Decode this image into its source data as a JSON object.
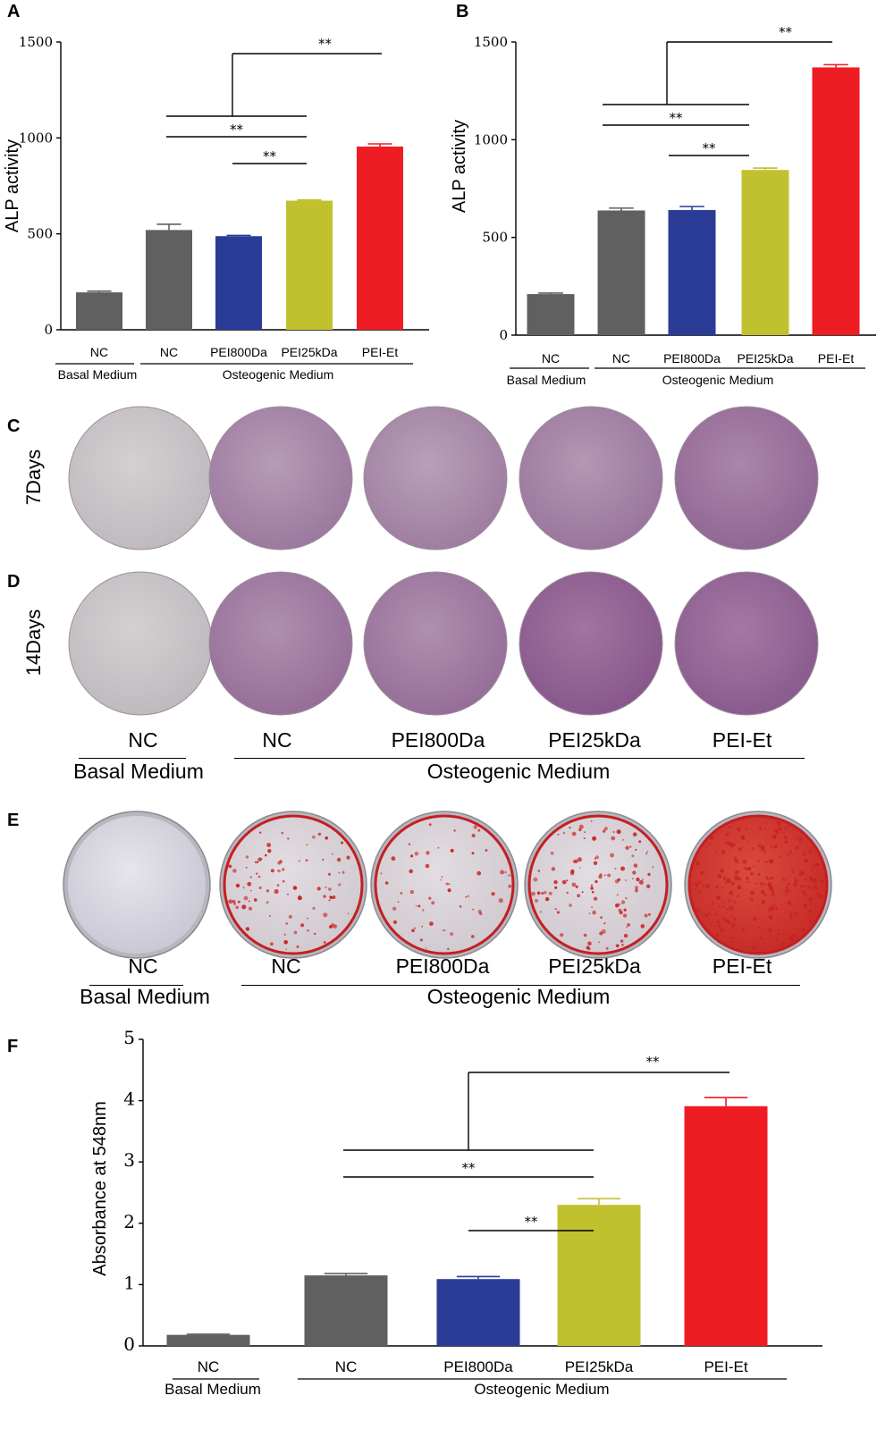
{
  "panels": {
    "A": "A",
    "B": "B",
    "C": "C",
    "D": "D",
    "E": "E",
    "F": "F"
  },
  "colors": {
    "nc_gray": "#606060",
    "pei800_blue": "#2a3c96",
    "pei25_olive": "#c1c12f",
    "peiet_red": "#ee1d24",
    "alp_stain_basal": "#c7c3c6",
    "alp_stain": "#a079a3",
    "ars_stain": "#cc2a2a"
  },
  "chart_data": [
    {
      "id": "A",
      "type": "bar",
      "title": "",
      "ylabel": "ALP activity",
      "ylim": [
        0,
        1500
      ],
      "yticks": [
        "0",
        "500",
        "1000",
        "1500"
      ],
      "yticks_values": [
        0,
        500,
        1000,
        1500
      ],
      "categories": [
        "NC",
        "NC",
        "PEI800Da",
        "PEI25kDa",
        "PEI-Et"
      ],
      "values": [
        195,
        520,
        488,
        673,
        955
      ],
      "errors": [
        6,
        30,
        4,
        4,
        14
      ],
      "bar_colors": [
        "#606060",
        "#606060",
        "#2a3c96",
        "#c1c12f",
        "#ee1d24"
      ],
      "groups": [
        {
          "label": "Basal Medium",
          "from": 0,
          "to": 0
        },
        {
          "label": "Osteogenic Medium",
          "from": 1,
          "to": 4
        }
      ],
      "significance": [
        {
          "from": 2,
          "to": 3,
          "label": "**"
        },
        {
          "from": 1,
          "to": 3,
          "label": "**"
        },
        {
          "from": 1,
          "to": 3,
          "label": ""
        },
        {
          "from": "bracket",
          "to": 4,
          "label": "**"
        }
      ]
    },
    {
      "id": "B",
      "type": "bar",
      "title": "",
      "ylabel": "ALP activity",
      "ylim": [
        0,
        1500
      ],
      "yticks": [
        "0",
        "500",
        "1000",
        "1500"
      ],
      "yticks_values": [
        0,
        500,
        1000,
        1500
      ],
      "categories": [
        "NC",
        "NC",
        "PEI800Da",
        "PEI25kDa",
        "PEI-Et"
      ],
      "values": [
        210,
        638,
        640,
        845,
        1370
      ],
      "errors": [
        5,
        12,
        18,
        10,
        14
      ],
      "bar_colors": [
        "#606060",
        "#606060",
        "#2a3c96",
        "#c1c12f",
        "#ee1d24"
      ],
      "groups": [
        {
          "label": "Basal Medium",
          "from": 0,
          "to": 0
        },
        {
          "label": "Osteogenic Medium",
          "from": 1,
          "to": 4
        }
      ],
      "significance": [
        {
          "from": 2,
          "to": 3,
          "label": "**"
        },
        {
          "from": 1,
          "to": 3,
          "label": "**"
        },
        {
          "from": 1,
          "to": 3,
          "label": ""
        },
        {
          "from": "bracket",
          "to": 4,
          "label": "**"
        }
      ]
    },
    {
      "id": "F",
      "type": "bar",
      "title": "",
      "ylabel": "Absorbance at 548nm",
      "ylim": [
        0,
        5
      ],
      "yticks": [
        "0",
        "1",
        "2",
        "3",
        "4",
        "5"
      ],
      "yticks_values": [
        0,
        1,
        2,
        3,
        4,
        5
      ],
      "categories": [
        "NC",
        "NC",
        "PEI800Da",
        "PEI25kDa",
        "PEI-Et"
      ],
      "values": [
        0.18,
        1.15,
        1.09,
        2.3,
        3.91
      ],
      "errors": [
        0.01,
        0.03,
        0.04,
        0.1,
        0.14
      ],
      "bar_colors": [
        "#606060",
        "#606060",
        "#2a3c96",
        "#c1c12f",
        "#ee1d24"
      ],
      "groups": [
        {
          "label": "Basal Medium",
          "from": 0,
          "to": 0
        },
        {
          "label": "Osteogenic Medium",
          "from": 1,
          "to": 4
        }
      ],
      "significance": [
        {
          "from": 2,
          "to": 3,
          "label": "**"
        },
        {
          "from": 1,
          "to": 3,
          "label": "**"
        },
        {
          "from": 1,
          "to": 3,
          "label": ""
        },
        {
          "from": "bracket",
          "to": 4,
          "label": "**"
        }
      ]
    }
  ],
  "stain_rows": {
    "C": {
      "side_label": "7Days",
      "dishes": [
        "NC",
        "NC",
        "PEI800Da",
        "PEI25kDa",
        "PEI-Et"
      ]
    },
    "D": {
      "side_label": "14Days",
      "dishes": [
        "NC",
        "NC",
        "PEI800Da",
        "PEI25kDa",
        "PEI-Et"
      ]
    },
    "D_labels": {
      "names": [
        "NC",
        "NC",
        "PEI800Da",
        "PEI25kDa",
        "PEI-Et"
      ],
      "basal": "Basal Medium",
      "osteo": "Osteogenic Medium"
    },
    "E": {
      "names": [
        "NC",
        "NC",
        "PEI800Da",
        "PEI25kDa",
        "PEI-Et"
      ],
      "basal": "Basal Medium",
      "osteo": "Osteogenic Medium"
    }
  }
}
